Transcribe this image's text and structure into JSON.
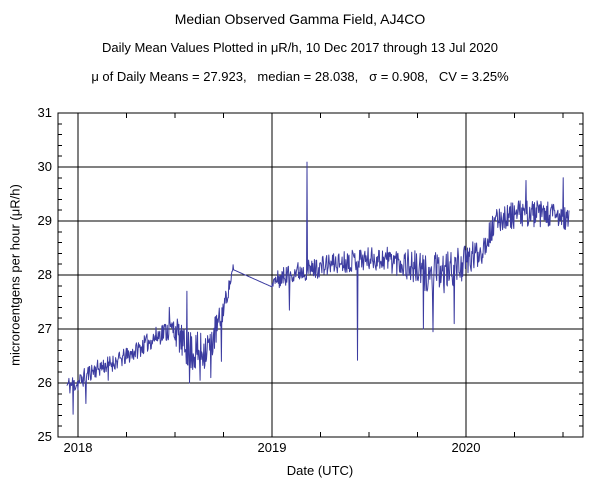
{
  "header": {
    "title": "Median Observed Gamma Field, AJ4CO",
    "subtitle": "Daily Mean Values Plotted in μR/h, 10 Dec 2017 through 13 Jul 2020",
    "stats": "μ of Daily Means = 27.923,   median = 28.038,   σ = 0.908,   CV = 3.25%"
  },
  "chart_data": {
    "type": "line",
    "title": "Median Observed Gamma Field, AJ4CO",
    "xlabel": "Date (UTC)",
    "ylabel": "microroentgens per hour (μR/h)",
    "xlim": [
      2017.897,
      2020.603
    ],
    "ylim": [
      25,
      31
    ],
    "x_major_ticks": [
      2018,
      2019,
      2020
    ],
    "x_tick_labels": [
      "2018",
      "2019",
      "2020"
    ],
    "x_minor_step_years": 0.25,
    "y_major_step": 1,
    "y_minor_step": 0.2,
    "grid": true,
    "legend": "none",
    "line_color": "#3C3CA0",
    "series_name": "daily mean gamma field",
    "date_range": {
      "start": "10 Dec 2017",
      "end": "13 Jul 2020"
    },
    "x_start": 2017.942,
    "x_end": 2020.533,
    "points_per_year": 365,
    "seed": 11,
    "stats": {
      "mean_of_daily_means": 27.923,
      "median": 28.038,
      "sigma": 0.908,
      "cv_percent": 3.25
    },
    "trend_points": [
      [
        2017.942,
        25.95
      ],
      [
        2018.0,
        26.0
      ],
      [
        2018.06,
        26.2
      ],
      [
        2018.12,
        26.3
      ],
      [
        2018.2,
        26.4
      ],
      [
        2018.28,
        26.55
      ],
      [
        2018.36,
        26.75
      ],
      [
        2018.44,
        26.95
      ],
      [
        2018.5,
        27.0
      ],
      [
        2018.55,
        26.65
      ],
      [
        2018.62,
        26.55
      ],
      [
        2018.68,
        26.7
      ],
      [
        2018.73,
        27.15
      ],
      [
        2018.77,
        27.65
      ],
      [
        2018.8,
        28.1
      ],
      [
        2019.0,
        27.85
      ],
      [
        2019.1,
        28.05
      ],
      [
        2019.2,
        28.1
      ],
      [
        2019.3,
        28.2
      ],
      [
        2019.45,
        28.3
      ],
      [
        2019.6,
        28.3
      ],
      [
        2019.7,
        28.2
      ],
      [
        2019.8,
        28.0
      ],
      [
        2019.9,
        28.05
      ],
      [
        2020.0,
        28.25
      ],
      [
        2020.08,
        28.45
      ],
      [
        2020.12,
        28.75
      ],
      [
        2020.17,
        29.05
      ],
      [
        2020.3,
        29.15
      ],
      [
        2020.45,
        29.1
      ],
      [
        2020.533,
        29.0
      ]
    ],
    "noise_amplitude_points": [
      [
        2017.942,
        0.18
      ],
      [
        2018.1,
        0.16
      ],
      [
        2018.3,
        0.16
      ],
      [
        2018.45,
        0.2
      ],
      [
        2018.52,
        0.3
      ],
      [
        2018.6,
        0.4
      ],
      [
        2018.7,
        0.35
      ],
      [
        2018.76,
        0.18
      ],
      [
        2018.8,
        0.1
      ],
      [
        2019.0,
        0.18
      ],
      [
        2019.3,
        0.2
      ],
      [
        2019.55,
        0.22
      ],
      [
        2019.7,
        0.3
      ],
      [
        2019.85,
        0.4
      ],
      [
        2019.98,
        0.32
      ],
      [
        2020.1,
        0.24
      ],
      [
        2020.3,
        0.25
      ],
      [
        2020.533,
        0.25
      ]
    ],
    "gaps": [
      {
        "from": 2018.8,
        "to": 2019.0,
        "from_value": 28.1,
        "to_value": 27.78
      }
    ],
    "spikes": [
      [
        2017.975,
        25.42
      ],
      [
        2018.04,
        25.62
      ],
      [
        2018.155,
        26.05
      ],
      [
        2018.47,
        27.4
      ],
      [
        2018.56,
        27.7
      ],
      [
        2018.575,
        26.0
      ],
      [
        2018.63,
        26.05
      ],
      [
        2018.685,
        26.1
      ],
      [
        2018.74,
        26.4
      ],
      [
        2019.09,
        27.35
      ],
      [
        2019.18,
        30.09
      ],
      [
        2019.44,
        26.42
      ],
      [
        2019.78,
        27.0
      ],
      [
        2019.83,
        26.95
      ],
      [
        2019.94,
        27.1
      ],
      [
        2020.31,
        29.75
      ],
      [
        2020.5,
        29.8
      ]
    ]
  }
}
